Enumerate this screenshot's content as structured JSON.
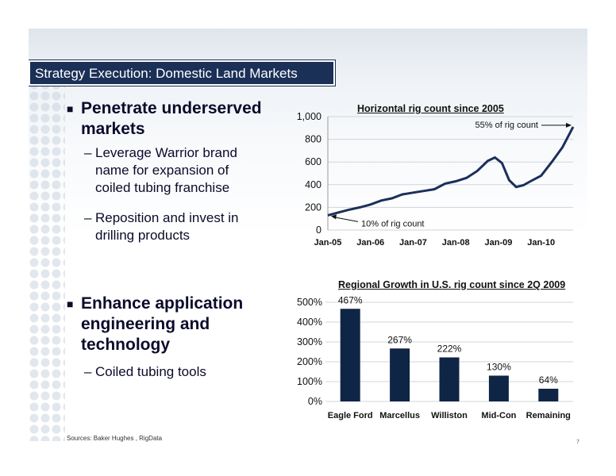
{
  "title": "Strategy Execution: Domestic Land Markets",
  "bullets": [
    {
      "text": "Penetrate underserved markets",
      "subs": [
        "Leverage Warrior brand name for expansion of coiled tubing franchise",
        "Reposition and invest in drilling products"
      ]
    },
    {
      "text": "Enhance application engineering and technology",
      "subs": [
        "Coiled tubing tools"
      ]
    }
  ],
  "source": "Sources: Baker Hughes , RigData",
  "page_number": "7",
  "colors": {
    "title_bar": "#1b3057",
    "bar": "#0f2545",
    "line": "#1b2f5a"
  },
  "chart_data": [
    {
      "type": "line",
      "title": "Horizontal rig count since 2005",
      "x_ticks": [
        "Jan-05",
        "Jan-06",
        "Jan-07",
        "Jan-08",
        "Jan-09",
        "Jan-10"
      ],
      "y_ticks": [
        "0",
        "200",
        "400",
        "600",
        "800",
        "1,000"
      ],
      "ylim": [
        0,
        1000
      ],
      "xlim": [
        "2005-01",
        "2010-10"
      ],
      "grid": true,
      "series": [
        {
          "x": [
            "2005-01",
            "2005-04",
            "2005-07",
            "2005-10",
            "2006-01",
            "2006-04",
            "2006-07",
            "2006-10",
            "2007-01",
            "2007-04",
            "2007-07",
            "2007-10",
            "2008-01",
            "2008-04",
            "2008-07",
            "2008-10",
            "2008-12",
            "2009-02",
            "2009-04",
            "2009-06",
            "2009-08",
            "2009-10",
            "2010-01",
            "2010-04",
            "2010-07",
            "2010-10"
          ],
          "values": [
            130,
            155,
            180,
            200,
            225,
            260,
            280,
            315,
            330,
            345,
            360,
            410,
            430,
            460,
            520,
            610,
            640,
            590,
            440,
            380,
            395,
            430,
            480,
            600,
            730,
            910
          ]
        }
      ],
      "annotations": [
        {
          "text": "10% of rig count",
          "x": "2005-01",
          "y": 130
        },
        {
          "text": "55% of rig count",
          "x": "2010-10",
          "y": 910
        }
      ]
    },
    {
      "type": "bar",
      "title": "Regional Growth in U.S. rig count since 2Q 2009",
      "categories": [
        "Eagle Ford",
        "Marcellus",
        "Williston",
        "Mid-Con",
        "Remaining"
      ],
      "values": [
        467,
        267,
        222,
        130,
        64
      ],
      "labels": [
        "467%",
        "267%",
        "222%",
        "130%",
        "64%"
      ],
      "y_ticks": [
        "0%",
        "100%",
        "200%",
        "300%",
        "400%",
        "500%"
      ],
      "ylim": [
        0,
        500
      ],
      "grid": true
    }
  ]
}
